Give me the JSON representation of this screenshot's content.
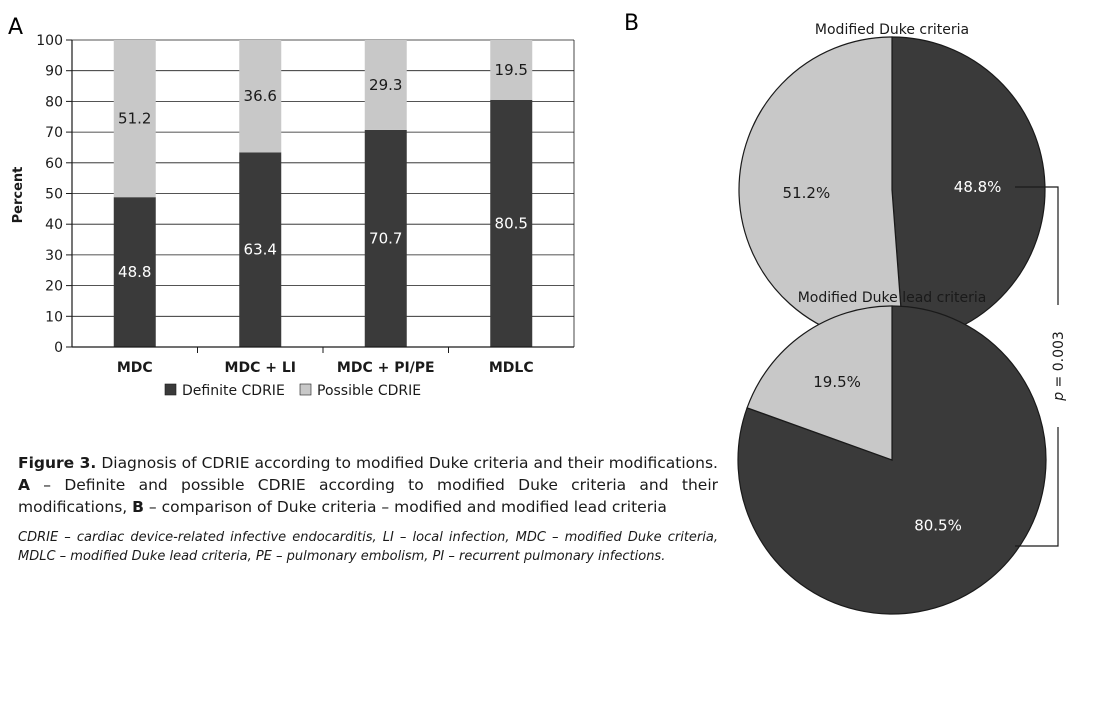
{
  "panels": {
    "a": "A",
    "b": "B"
  },
  "chart_data": [
    {
      "type": "bar",
      "stacked": true,
      "ylabel": "Percent",
      "ylim": [
        0,
        100
      ],
      "yticks": [
        "0",
        "10",
        "20",
        "30",
        "40",
        "50",
        "60",
        "70",
        "80",
        "90",
        "100"
      ],
      "categories": [
        "MDC",
        "MDC + LI",
        "MDC + PI/PE",
        "MDLC"
      ],
      "series": [
        {
          "name": "Definite CDRIE",
          "values": [
            48.8,
            63.4,
            70.7,
            80.5
          ],
          "labels": [
            "48.8",
            "63.4",
            "70.7",
            "80.5"
          ],
          "color": "#3a3a3a"
        },
        {
          "name": "Possible CDRIE",
          "values": [
            51.2,
            36.6,
            29.3,
            19.5
          ],
          "labels": [
            "51.2",
            "36.6",
            "29.3",
            "19.5"
          ],
          "color": "#c8c8c8"
        }
      ],
      "grid": true,
      "legend": "bottom"
    },
    {
      "type": "pie",
      "title": "Modified Duke criteria",
      "values": [
        48.8,
        51.2
      ],
      "labels": [
        "48.8%",
        "51.2%"
      ],
      "colors": [
        "#3a3a3a",
        "#c8c8c8"
      ]
    },
    {
      "type": "pie",
      "title": "Modified Duke lead criteria",
      "values": [
        80.5,
        19.5
      ],
      "labels": [
        "80.5%",
        "19.5%"
      ],
      "colors": [
        "#3a3a3a",
        "#c8c8c8"
      ]
    }
  ],
  "comparison": {
    "p_symbol": "p",
    "p_rest": " = 0.003"
  },
  "caption": {
    "figure_label": "Figure 3.",
    "text1": " Diagnosis of CDRIE according to modified Duke criteria and their modifications. ",
    "label_a": "A",
    "text2": " – Definite and possible CDRIE according to modified Duke criteria and their modifications, ",
    "label_b": "B",
    "text3": " – comparison of Duke criteria – modified and modified lead criteria",
    "notes": "CDRIE – cardiac device-related infective endocarditis, LI – local infection, MDC – modified Duke criteria, MDLC – modified Duke lead criteria, PE – pulmonary embolism, PI – recurrent pulmonary infections."
  }
}
